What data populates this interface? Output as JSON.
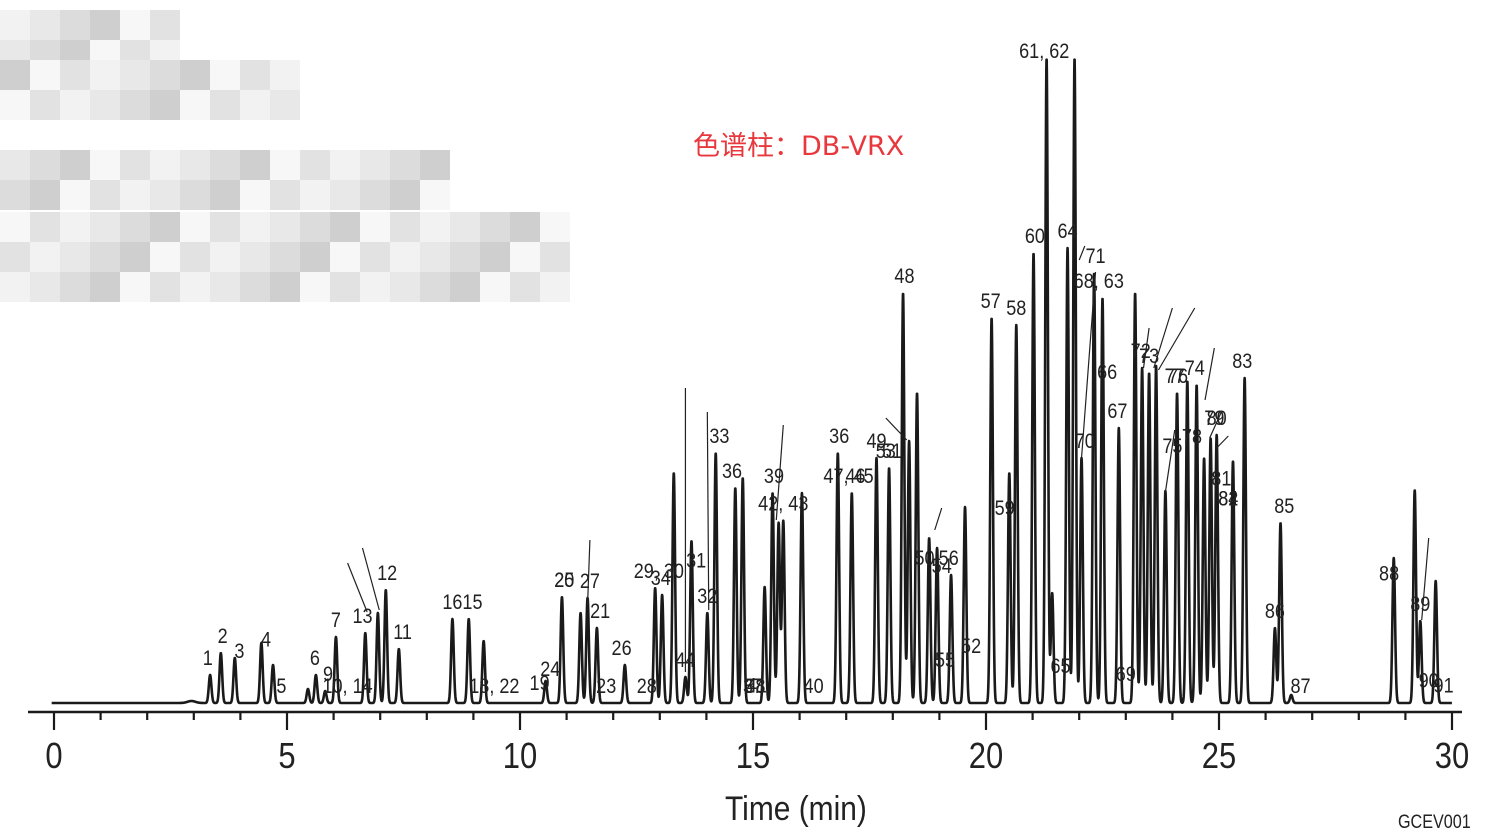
{
  "chart_data": {
    "type": "line",
    "xlabel": "Time (min)",
    "ylabel": "",
    "xlim": [
      0,
      30
    ],
    "x_ticks": [
      0,
      5,
      10,
      15,
      20,
      25,
      30
    ],
    "annotation": "色谱柱：DB-VRX",
    "figure_code": "GCEV001",
    "colors": {
      "trace": "#1a1a1a",
      "annotation": "#e8383d"
    },
    "peaks": [
      {
        "t": 3.35,
        "h": 28
      },
      {
        "t": 3.58,
        "h": 50
      },
      {
        "t": 3.88,
        "h": 45
      },
      {
        "t": 4.45,
        "h": 60
      },
      {
        "t": 4.7,
        "h": 38
      },
      {
        "t": 5.45,
        "h": 14
      },
      {
        "t": 5.62,
        "h": 28
      },
      {
        "t": 5.82,
        "h": 12
      },
      {
        "t": 6.05,
        "h": 66
      },
      {
        "t": 6.68,
        "h": 70
      },
      {
        "t": 6.95,
        "h": 90
      },
      {
        "t": 7.12,
        "h": 113
      },
      {
        "t": 7.4,
        "h": 54
      },
      {
        "t": 8.55,
        "h": 84
      },
      {
        "t": 8.9,
        "h": 84
      },
      {
        "t": 9.22,
        "h": 62
      },
      {
        "t": 10.55,
        "h": 22
      },
      {
        "t": 10.9,
        "h": 106
      },
      {
        "t": 11.3,
        "h": 90
      },
      {
        "t": 11.45,
        "h": 105
      },
      {
        "t": 11.65,
        "h": 75
      },
      {
        "t": 12.25,
        "h": 38
      },
      {
        "t": 12.9,
        "h": 115
      },
      {
        "t": 13.05,
        "h": 108
      },
      {
        "t": 13.3,
        "h": 230
      },
      {
        "t": 13.55,
        "h": 26
      },
      {
        "t": 13.68,
        "h": 162
      },
      {
        "t": 14.02,
        "h": 90
      },
      {
        "t": 14.2,
        "h": 250
      },
      {
        "t": 14.62,
        "h": 215
      },
      {
        "t": 14.78,
        "h": 225
      },
      {
        "t": 15.25,
        "h": 116
      },
      {
        "t": 15.42,
        "h": 210
      },
      {
        "t": 15.55,
        "h": 180
      },
      {
        "t": 15.65,
        "h": 182
      },
      {
        "t": 16.05,
        "h": 210
      },
      {
        "t": 16.82,
        "h": 250
      },
      {
        "t": 17.12,
        "h": 210
      },
      {
        "t": 17.65,
        "h": 245
      },
      {
        "t": 17.92,
        "h": 235
      },
      {
        "t": 18.22,
        "h": 410
      },
      {
        "t": 18.35,
        "h": 262
      },
      {
        "t": 18.52,
        "h": 310
      },
      {
        "t": 18.78,
        "h": 165
      },
      {
        "t": 18.95,
        "h": 155
      },
      {
        "t": 19.25,
        "h": 128
      },
      {
        "t": 19.55,
        "h": 196
      },
      {
        "t": 20.12,
        "h": 385
      },
      {
        "t": 20.5,
        "h": 230
      },
      {
        "t": 20.65,
        "h": 378
      },
      {
        "t": 21.02,
        "h": 450
      },
      {
        "t": 21.3,
        "h": 645
      },
      {
        "t": 21.42,
        "h": 110
      },
      {
        "t": 21.75,
        "h": 455
      },
      {
        "t": 21.9,
        "h": 645
      },
      {
        "t": 22.05,
        "h": 245
      },
      {
        "t": 22.32,
        "h": 430
      },
      {
        "t": 22.5,
        "h": 405
      },
      {
        "t": 22.85,
        "h": 275
      },
      {
        "t": 23.2,
        "h": 410
      },
      {
        "t": 23.35,
        "h": 335
      },
      {
        "t": 23.5,
        "h": 330
      },
      {
        "t": 23.65,
        "h": 337
      },
      {
        "t": 23.85,
        "h": 212
      },
      {
        "t": 24.1,
        "h": 310
      },
      {
        "t": 24.32,
        "h": 322
      },
      {
        "t": 24.52,
        "h": 318
      },
      {
        "t": 24.68,
        "h": 245
      },
      {
        "t": 24.82,
        "h": 265
      },
      {
        "t": 24.95,
        "h": 268
      },
      {
        "t": 25.3,
        "h": 242
      },
      {
        "t": 25.55,
        "h": 325
      },
      {
        "t": 26.2,
        "h": 75
      },
      {
        "t": 26.32,
        "h": 180
      },
      {
        "t": 26.55,
        "h": 8
      },
      {
        "t": 28.75,
        "h": 145
      },
      {
        "t": 29.2,
        "h": 213
      },
      {
        "t": 29.32,
        "h": 82
      },
      {
        "t": 29.65,
        "h": 122
      }
    ],
    "peak_labels": [
      {
        "text": "1",
        "t": 3.3
      },
      {
        "text": "2",
        "t": 3.62
      },
      {
        "text": "3",
        "t": 3.98
      },
      {
        "text": "4",
        "t": 4.55
      },
      {
        "text": "5",
        "t": 4.88
      },
      {
        "text": "6",
        "t": 5.6
      },
      {
        "text": "9",
        "t": 5.88
      },
      {
        "text": "7",
        "t": 6.05
      },
      {
        "text": "10, 14",
        "t": 6.3
      },
      {
        "text": "13",
        "t": 6.62
      },
      {
        "text": "12",
        "t": 7.15
      },
      {
        "text": "11",
        "t": 7.48
      },
      {
        "text": "16",
        "t": 8.55
      },
      {
        "text": "15",
        "t": 8.98
      },
      {
        "text": "18, 22",
        "t": 9.45
      },
      {
        "text": "19",
        "t": 10.42
      },
      {
        "text": "24",
        "t": 10.65
      },
      {
        "text": "20",
        "t": 10.95
      },
      {
        "text": "25",
        "t": 10.95
      },
      {
        "text": "27",
        "t": 11.5
      },
      {
        "text": "21",
        "t": 11.72
      },
      {
        "text": "23",
        "t": 11.85
      },
      {
        "text": "26",
        "t": 12.18
      },
      {
        "text": "28",
        "t": 12.72
      },
      {
        "text": "34",
        "t": 13.02
      },
      {
        "text": "29, 30",
        "t": 12.98
      },
      {
        "text": "44",
        "t": 13.55
      },
      {
        "text": "31",
        "t": 13.78
      },
      {
        "text": "32",
        "t": 14.02
      },
      {
        "text": "33",
        "t": 14.28
      },
      {
        "text": "36",
        "t": 14.55
      },
      {
        "text": "37",
        "t": 15.0
      },
      {
        "text": "38",
        "t": 15.05
      },
      {
        "text": "39",
        "t": 15.45
      },
      {
        "text": "41",
        "t": 15.08
      },
      {
        "text": "42, 43",
        "t": 15.65
      },
      {
        "text": "40",
        "t": 16.3
      },
      {
        "text": "36",
        "t": 16.85
      },
      {
        "text": "47, 45",
        "t": 17.05
      },
      {
        "text": "46",
        "t": 17.2
      },
      {
        "text": "49",
        "t": 17.65
      },
      {
        "text": "51",
        "t": 17.98
      },
      {
        "text": "48",
        "t": 18.25
      },
      {
        "text": "53",
        "t": 17.85
      },
      {
        "text": "50",
        "t": 18.68
      },
      {
        "text": "54",
        "t": 19.05
      },
      {
        "text": "55",
        "t": 19.12
      },
      {
        "text": "56",
        "t": 19.2
      },
      {
        "text": "52",
        "t": 19.68
      },
      {
        "text": "57",
        "t": 20.1
      },
      {
        "text": "58",
        "t": 20.65
      },
      {
        "text": "59",
        "t": 20.4
      },
      {
        "text": "60",
        "t": 21.05
      },
      {
        "text": "61, 62",
        "t": 21.25
      },
      {
        "text": "65",
        "t": 21.6
      },
      {
        "text": "64",
        "t": 21.75
      },
      {
        "text": "70",
        "t": 22.12
      },
      {
        "text": "68, 63",
        "t": 22.42
      },
      {
        "text": "71",
        "t": 22.35
      },
      {
        "text": "66",
        "t": 22.6
      },
      {
        "text": "67",
        "t": 22.82
      },
      {
        "text": "69",
        "t": 23.0
      },
      {
        "text": "72",
        "t": 23.32
      },
      {
        "text": "73",
        "t": 23.5
      },
      {
        "text": "75",
        "t": 24.0
      },
      {
        "text": "74",
        "t": 24.48
      },
      {
        "text": "76",
        "t": 24.12
      },
      {
        "text": "77",
        "t": 24.05
      },
      {
        "text": "78",
        "t": 24.42
      },
      {
        "text": "79",
        "t": 24.9
      },
      {
        "text": "80",
        "t": 24.95
      },
      {
        "text": "81",
        "t": 25.05
      },
      {
        "text": "82",
        "t": 25.2
      },
      {
        "text": "84",
        "t": 25.2
      },
      {
        "text": "83",
        "t": 25.5
      },
      {
        "text": "85",
        "t": 26.4
      },
      {
        "text": "86",
        "t": 26.2
      },
      {
        "text": "87",
        "t": 26.75
      },
      {
        "text": "88",
        "t": 28.65
      },
      {
        "text": "89",
        "t": 29.32
      },
      {
        "text": "90",
        "t": 29.5
      },
      {
        "text": "91",
        "t": 29.82
      }
    ]
  }
}
